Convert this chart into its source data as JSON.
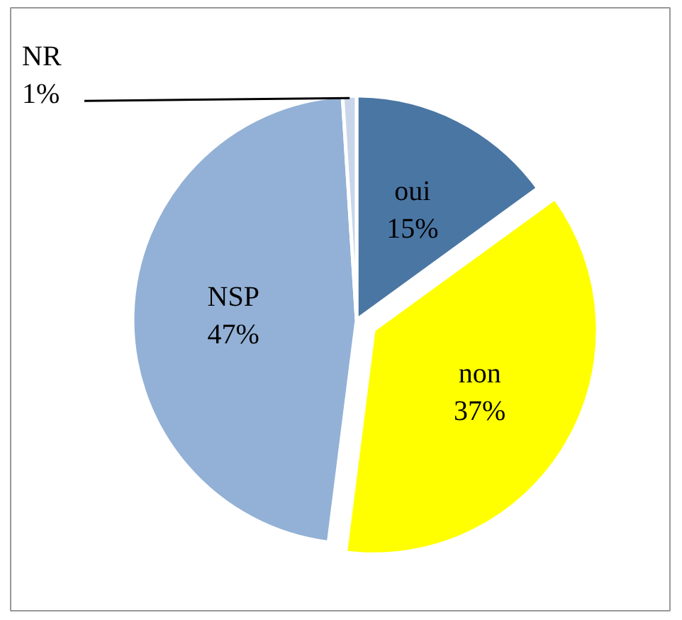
{
  "chart_data": {
    "type": "pie",
    "categories": [
      "oui",
      "non",
      "NSP",
      "NR"
    ],
    "values": [
      15,
      37,
      47,
      1
    ],
    "value_labels": [
      "15%",
      "37%",
      "47%",
      "1%"
    ],
    "colors": [
      "#4a76a3",
      "#ffff00",
      "#93b1d6",
      "#c9d6ea"
    ]
  }
}
